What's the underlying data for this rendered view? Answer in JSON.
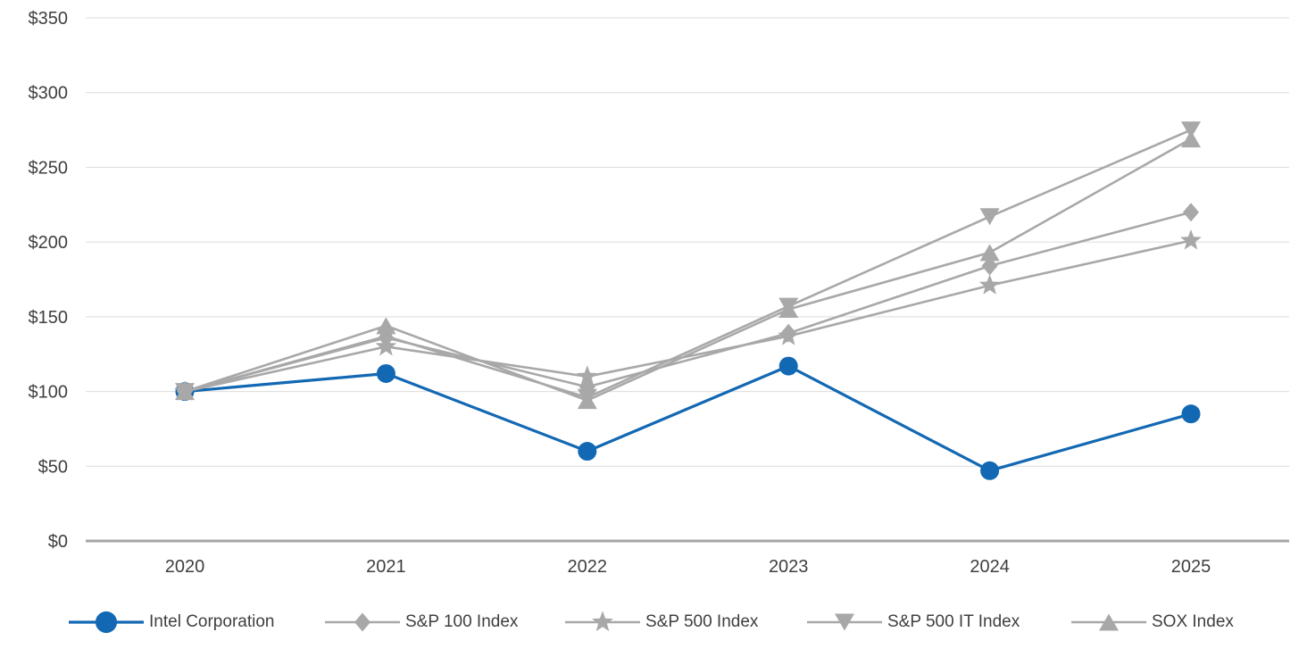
{
  "chart_data": {
    "type": "line",
    "title": "",
    "xlabel": "",
    "ylabel": "",
    "x": [
      "2020",
      "2021",
      "2022",
      "2023",
      "2024",
      "2025"
    ],
    "ylim": [
      0,
      350
    ],
    "ytick_step": 50,
    "ytick_labels": [
      "$350",
      "$300",
      "$250",
      "$200",
      "$150",
      "$100",
      "$50",
      "$0"
    ],
    "grid": "horizontal",
    "legend_position": "bottom",
    "series": [
      {
        "name": "Intel Corporation",
        "marker": "circle",
        "color": "#1268b3",
        "values": [
          100,
          112,
          60,
          117,
          47,
          85
        ]
      },
      {
        "name": "S&P 100 Index",
        "marker": "diamond",
        "color": "#a8a8a8",
        "values": [
          100,
          136,
          103,
          139,
          184,
          220
        ]
      },
      {
        "name": "S&P 500 Index",
        "marker": "star",
        "color": "#a8a8a8",
        "values": [
          100,
          130,
          110,
          137,
          171,
          201
        ]
      },
      {
        "name": "S&P 500 IT Index",
        "marker": "triangle-down",
        "color": "#a8a8a8",
        "values": [
          100,
          137,
          96,
          157,
          217,
          275
        ]
      },
      {
        "name": "SOX Index",
        "marker": "triangle-up",
        "color": "#a8a8a8",
        "values": [
          100,
          144,
          94,
          155,
          193,
          269
        ]
      }
    ]
  },
  "colors": {
    "intel_blue": "#1268b3",
    "index_gray": "#a8a8a8",
    "gridline": "#dcdcdc",
    "axis_line": "#a6a6a6",
    "text": "#3f3f3f"
  }
}
